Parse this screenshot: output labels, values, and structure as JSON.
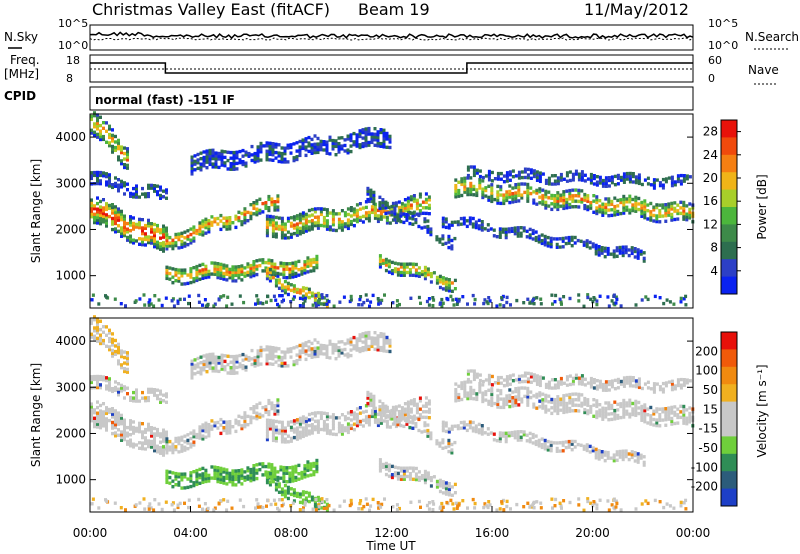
{
  "header": {
    "station": "Christmas Valley East (fitACF)",
    "beam": "Beam 19",
    "date": "11/May/2012"
  },
  "noise_panel": {
    "left_label": "N.Sky",
    "right_label": "N.Search",
    "left_ticks": [
      "10^5",
      "10^0"
    ],
    "right_ticks": [
      "10^5",
      "10^0"
    ]
  },
  "freq_panel": {
    "left_label_1": "Freq.",
    "left_label_2": "[MHz]",
    "right_label": "Nave",
    "left_ticks": [
      "18",
      "8"
    ],
    "right_ticks": [
      "60",
      "0"
    ],
    "cpid_label": "CPID",
    "cpid_value": "normal (fast) -151 IF"
  },
  "colors": {
    "power_scale": [
      "#0a22f0",
      "#2c3fc6",
      "#2d6e4f",
      "#3d8a49",
      "#4cb63c",
      "#a8cf2a",
      "#f0b418",
      "#f57f12",
      "#f04a0c",
      "#e8120a"
    ],
    "velocity_scale": [
      "#1d3fc7",
      "#2c5c7b",
      "#2f8d56",
      "#6fcf3b",
      "#c8c8c8",
      "#c8c8c8",
      "#f0b020",
      "#f08a10",
      "#f05a0a",
      "#e8100a"
    ]
  },
  "chart_data": [
    {
      "type": "heatmap",
      "ylabel": "Slant Range [km]",
      "y_ticks": [
        "1000",
        "2000",
        "3000",
        "4000"
      ],
      "ylim": [
        300,
        4500
      ],
      "colorbar_label": "Power [dB]",
      "colorbar_ticks": [
        "28",
        "24",
        "20",
        "16",
        "12",
        "8",
        "4"
      ],
      "colorbar_range": [
        0,
        30
      ]
    },
    {
      "type": "heatmap",
      "ylabel": "Slant Range [km]",
      "y_ticks": [
        "1000",
        "2000",
        "3000",
        "4000"
      ],
      "ylim": [
        300,
        4500
      ],
      "colorbar_label": "Velocity [m s⁻¹]",
      "colorbar_ticks": [
        "200",
        "100",
        "50",
        "15",
        "-15",
        "-50",
        "-100",
        "-200"
      ],
      "xlabel": "Time UT",
      "x_ticks": [
        "00:00",
        "04:00",
        "08:00",
        "12:00",
        "16:00",
        "20:00",
        "00:00"
      ],
      "xlim_hours": [
        0,
        24
      ]
    }
  ]
}
